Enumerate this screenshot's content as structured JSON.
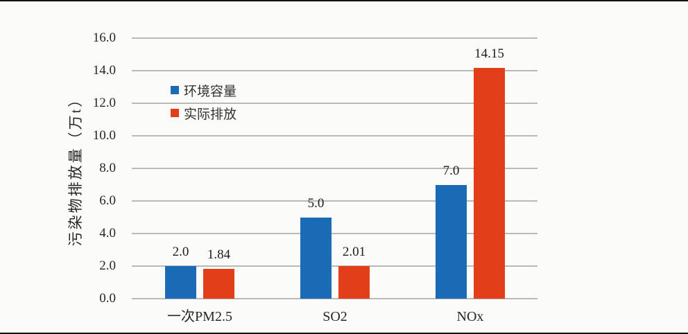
{
  "chart_data": {
    "type": "bar",
    "categories": [
      "一次PM2.5",
      "SO2",
      "NOx"
    ],
    "series": [
      {
        "name": "环境容量",
        "color": "#1a6ab5",
        "values": [
          2.0,
          5.0,
          7.0
        ],
        "labels": [
          "2.0",
          "5.0",
          "7.0"
        ]
      },
      {
        "name": "实际排放",
        "color": "#e23e19",
        "values": [
          1.84,
          2.01,
          14.15
        ],
        "labels": [
          "1.84",
          "2.01",
          "14.15"
        ]
      }
    ],
    "ylabel": "污染物排放量（万t）",
    "xlabel": "",
    "ylim": [
      0,
      16
    ],
    "ytick_step": 2,
    "ytick_labels": [
      "0.0",
      "2.0",
      "4.0",
      "6.0",
      "8.0",
      "10.0",
      "12.0",
      "14.0",
      "16.0"
    ],
    "grid": "horizontal",
    "gridline_color": "#b9b9b9",
    "legend_position": "inside-top-left",
    "background_color": "#fbfbf9",
    "text_color": "#262626"
  }
}
